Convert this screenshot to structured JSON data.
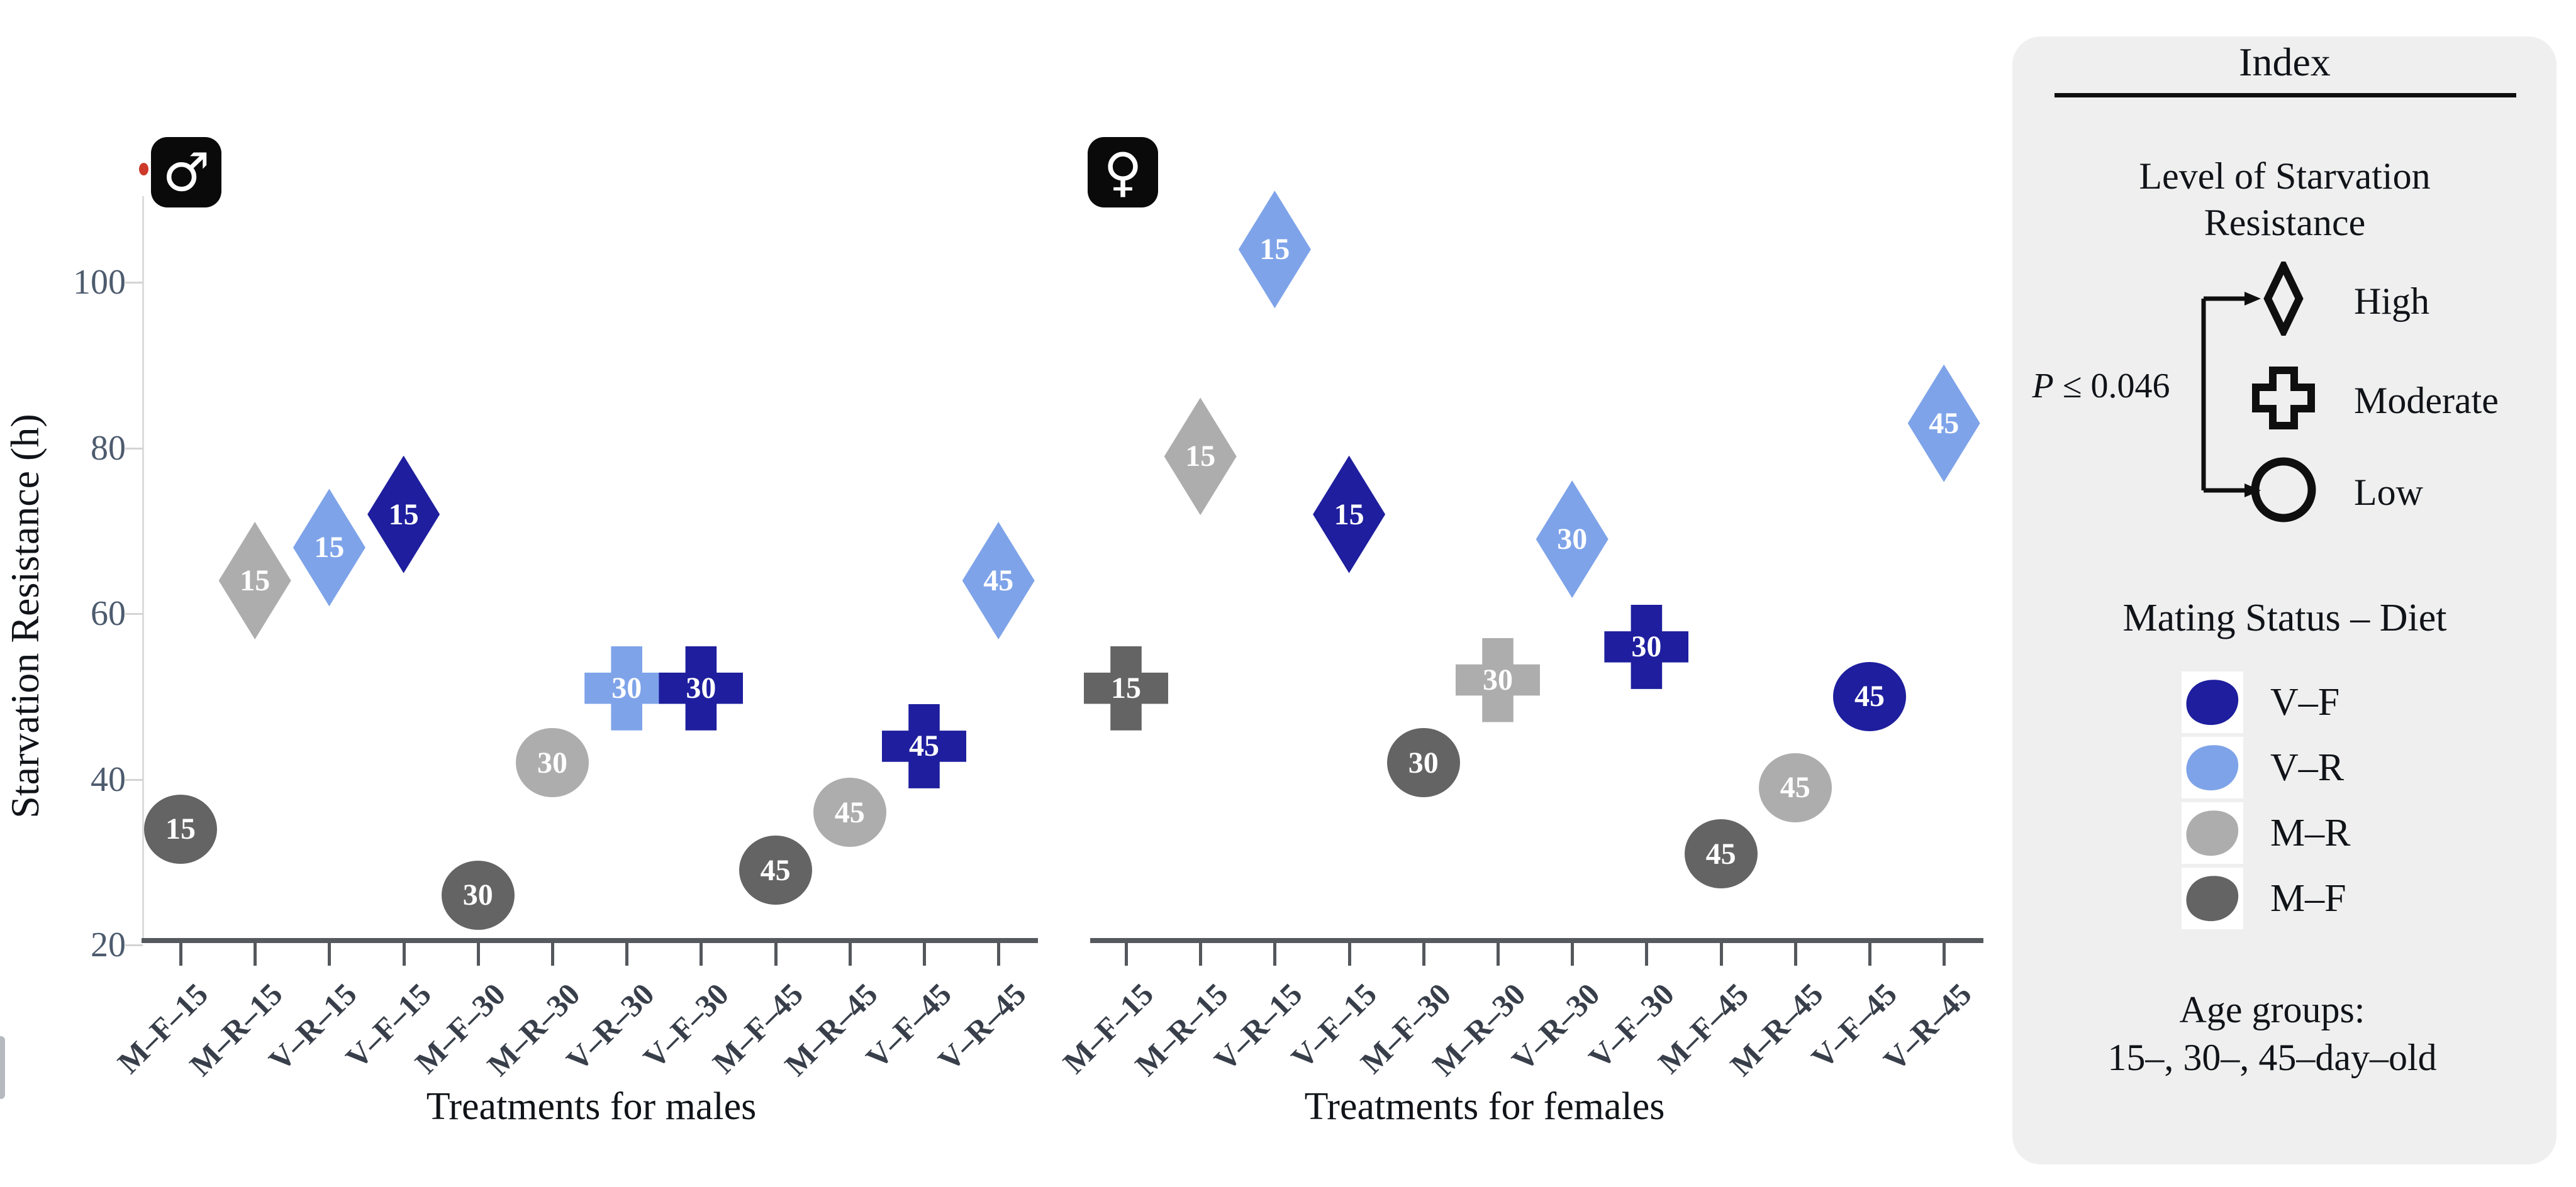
{
  "axis": {
    "y_title": "Starvation Resistance (h)",
    "y_ticks": [
      100,
      80,
      60,
      40,
      20
    ],
    "male": {
      "symbol": "♂",
      "title": "Treatments for males",
      "categories": [
        "M–F–15",
        "M–R–15",
        "V–R–15",
        "V–F–15",
        "M–F–30",
        "M–R–30",
        "V–R–30",
        "V–F–30",
        "M–F–45",
        "M–R–45",
        "V–F–45",
        "V–R–45"
      ]
    },
    "female": {
      "symbol": "♀",
      "title": "Treatments for females",
      "categories": [
        "M–F–15",
        "M–R–15",
        "V–R–15",
        "V–F–15",
        "M–F–30",
        "M–R–30",
        "V–R–30",
        "V–F–30",
        "M–F–45",
        "M–R–45",
        "V–F–45",
        "V–R–45"
      ]
    }
  },
  "legend": {
    "title": "Index",
    "level_heading_line1": "Level of Starvation",
    "level_heading_line2": "Resistance",
    "p_italic": "P",
    "p_rest": " ≤ 0.046",
    "levels": [
      {
        "shape": "diamond",
        "label": "High"
      },
      {
        "shape": "plus",
        "label": "Moderate"
      },
      {
        "shape": "circle",
        "label": "Low"
      }
    ],
    "mating_heading": "Mating Status – Diet",
    "mating": [
      {
        "key": "vf",
        "label": "V–F"
      },
      {
        "key": "vr",
        "label": "V–R"
      },
      {
        "key": "mr",
        "label": "M–R"
      },
      {
        "key": "mf",
        "label": "M–F"
      }
    ],
    "age_line1": "Age groups:",
    "age_line2": "15–, 30–, 45–day–old"
  },
  "colors": {
    "vf": "#1e1e9e",
    "vr": "#7ea3e9",
    "mr": "#adadad",
    "mf": "#646464",
    "axis_line": "#56595d",
    "y_tick_label": "#4d5b6e",
    "category_label": "#383f4a",
    "legend_bg": "#efefef",
    "icon_bg": "#0a0a0a",
    "marker_label": "#ffffff"
  },
  "chart_data": {
    "type": "scatter",
    "ylabel": "Starvation Resistance (h)",
    "value_units": "hours",
    "ylim": [
      20,
      110
    ],
    "grid": false,
    "shape_meaning": {
      "diamond": "High",
      "plus": "Moderate",
      "circle": "Low"
    },
    "group_meaning": {
      "vf": "V–F",
      "vr": "V–R",
      "mr": "M–R",
      "mf": "M–F"
    },
    "panels": [
      {
        "name": "Treatments for males",
        "sex": "male",
        "categories": [
          "M–F–15",
          "M–R–15",
          "V–R–15",
          "V–F–15",
          "M–F–30",
          "M–R–30",
          "V–R–30",
          "V–F–30",
          "M–F–45",
          "M–R–45",
          "V–F–45",
          "V–R–45"
        ],
        "points": [
          {
            "category": "M–F–15",
            "color_key": "mf",
            "age": "15",
            "shape": "circle",
            "level": "Low",
            "value": 34
          },
          {
            "category": "M–R–15",
            "color_key": "mr",
            "age": "15",
            "shape": "diamond",
            "level": "High",
            "value": 64
          },
          {
            "category": "V–R–15",
            "color_key": "vr",
            "age": "15",
            "shape": "diamond",
            "level": "High",
            "value": 68
          },
          {
            "category": "V–F–15",
            "color_key": "vf",
            "age": "15",
            "shape": "diamond",
            "level": "High",
            "value": 72
          },
          {
            "category": "M–F–30",
            "color_key": "mf",
            "age": "30",
            "shape": "circle",
            "level": "Low",
            "value": 26
          },
          {
            "category": "M–R–30",
            "color_key": "mr",
            "age": "30",
            "shape": "circle",
            "level": "Low",
            "value": 42
          },
          {
            "category": "V–R–30",
            "color_key": "vr",
            "age": "30",
            "shape": "plus",
            "level": "Moderate",
            "value": 51
          },
          {
            "category": "V–F–30",
            "color_key": "vf",
            "age": "30",
            "shape": "plus",
            "level": "Moderate",
            "value": 51
          },
          {
            "category": "M–F–45",
            "color_key": "mf",
            "age": "45",
            "shape": "circle",
            "level": "Low",
            "value": 29
          },
          {
            "category": "M–R–45",
            "color_key": "mr",
            "age": "45",
            "shape": "circle",
            "level": "Low",
            "value": 36
          },
          {
            "category": "V–F–45",
            "color_key": "vf",
            "age": "45",
            "shape": "plus",
            "level": "Moderate",
            "value": 44
          },
          {
            "category": "V–R–45",
            "color_key": "vr",
            "age": "45",
            "shape": "diamond",
            "level": "High",
            "value": 64
          }
        ]
      },
      {
        "name": "Treatments for females",
        "sex": "female",
        "categories": [
          "M–F–15",
          "M–R–15",
          "V–R–15",
          "V–F–15",
          "M–F–30",
          "M–R–30",
          "V–R–30",
          "V–F–30",
          "M–F–45",
          "M–R–45",
          "V–F–45",
          "V–R–45"
        ],
        "points": [
          {
            "category": "M–F–15",
            "color_key": "mf",
            "age": "15",
            "shape": "plus",
            "level": "Moderate",
            "value": 51
          },
          {
            "category": "M–R–15",
            "color_key": "mr",
            "age": "15",
            "shape": "diamond",
            "level": "High",
            "value": 79
          },
          {
            "category": "V–R–15",
            "color_key": "vr",
            "age": "15",
            "shape": "diamond",
            "level": "High",
            "value": 104
          },
          {
            "category": "V–F–15",
            "color_key": "vf",
            "age": "15",
            "shape": "diamond",
            "level": "High",
            "value": 72
          },
          {
            "category": "M–F–30",
            "color_key": "mf",
            "age": "30",
            "shape": "circle",
            "level": "Low",
            "value": 42
          },
          {
            "category": "M–R–30",
            "color_key": "mr",
            "age": "30",
            "shape": "plus",
            "level": "Moderate",
            "value": 52
          },
          {
            "category": "V–R–30",
            "color_key": "vr",
            "age": "30",
            "shape": "diamond",
            "level": "High",
            "value": 69
          },
          {
            "category": "V–F–30",
            "color_key": "vf",
            "age": "30",
            "shape": "plus",
            "level": "Moderate",
            "value": 56
          },
          {
            "category": "M–F–45",
            "color_key": "mf",
            "age": "45",
            "shape": "circle",
            "level": "Low",
            "value": 31
          },
          {
            "category": "M–R–45",
            "color_key": "mr",
            "age": "45",
            "shape": "circle",
            "level": "Low",
            "value": 39
          },
          {
            "category": "V–F–45",
            "color_key": "vf",
            "age": "45",
            "shape": "circle",
            "level": "Low",
            "value": 50
          },
          {
            "category": "V–R–45",
            "color_key": "vr",
            "age": "45",
            "shape": "diamond",
            "level": "High",
            "value": 83
          }
        ]
      }
    ]
  }
}
